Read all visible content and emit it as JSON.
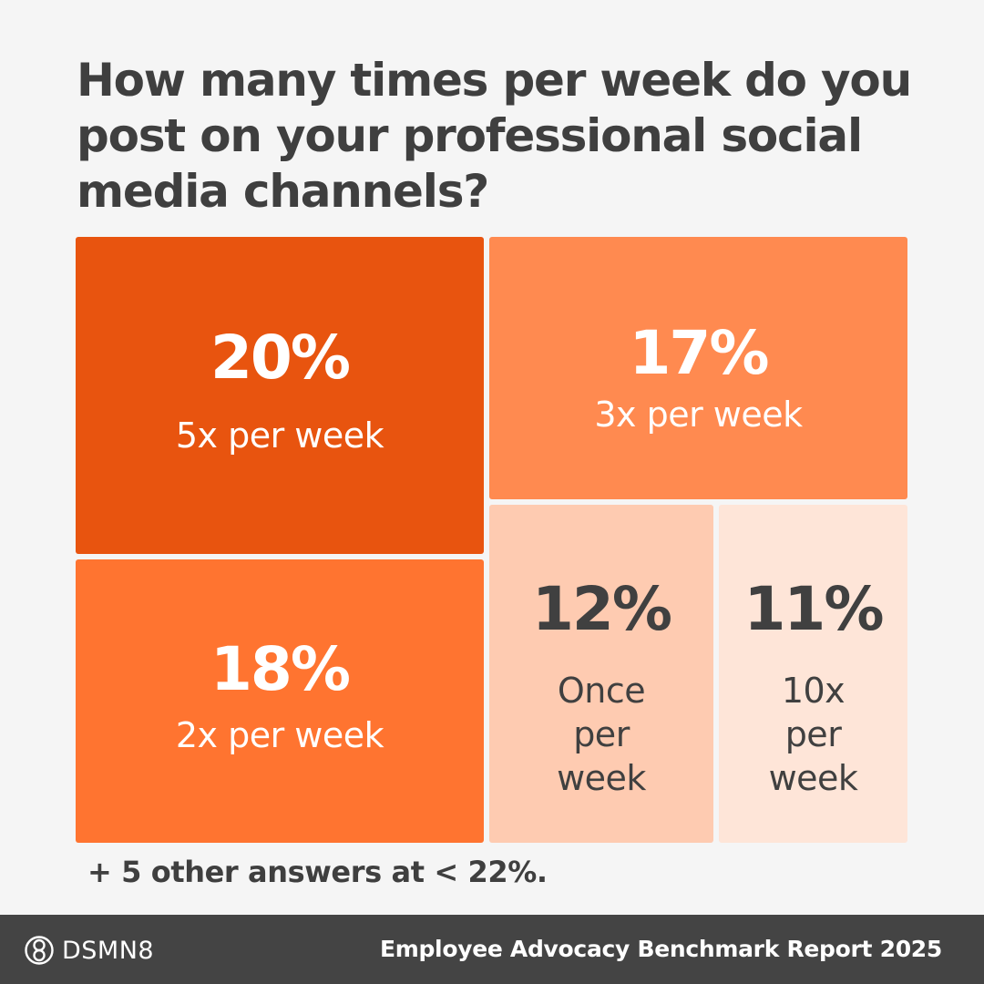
{
  "title": "How many times per week do you post on your professional social media channels?",
  "chart_data": {
    "type": "treemap",
    "title": "How many times per week do you post on your professional social media channels?",
    "unit": "%",
    "items": [
      {
        "label": "5x per week",
        "value": 20,
        "display": "20%",
        "color": "#e8540f",
        "text_color": "#ffffff"
      },
      {
        "label": "3x per week",
        "value": 17,
        "display": "17%",
        "color": "#ff8a50",
        "text_color": "#ffffff"
      },
      {
        "label": "2x per week",
        "value": 18,
        "display": "18%",
        "color": "#ff7430",
        "text_color": "#ffffff"
      },
      {
        "label": "Once\nper\nweek",
        "value": 12,
        "display": "12%",
        "color": "#fecbb1",
        "text_color": "#404040"
      },
      {
        "label": "10x\nper\nweek",
        "value": 11,
        "display": "11%",
        "color": "#fee5d8",
        "text_color": "#404040"
      }
    ],
    "footnote": "+ 5 other answers at < 22%."
  },
  "footer": {
    "brand": "DSMN8",
    "brand_icon": "dsmn8-logo-icon",
    "report": "Employee Advocacy Benchmark Report 2025",
    "background": "#444444"
  },
  "colors": {
    "background": "#f5f5f5",
    "text": "#3f3f3f"
  }
}
